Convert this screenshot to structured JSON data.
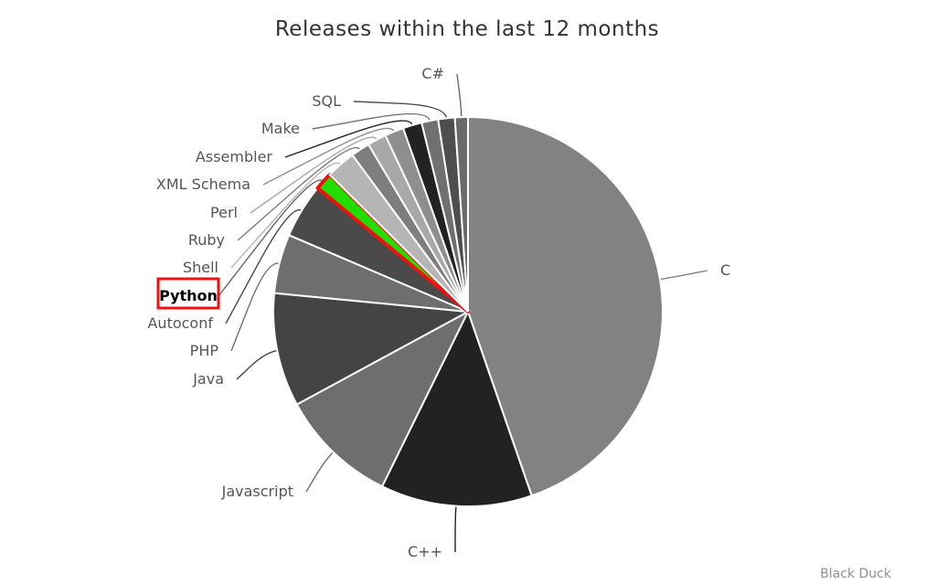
{
  "chart_data": {
    "type": "pie",
    "title": "Releases within the last 12 months",
    "credit": "Black Duck",
    "highlighted": "Python",
    "categories": [
      "C",
      "C++",
      "Javascript",
      "Java",
      "PHP",
      "Autoconf",
      "Python",
      "Shell",
      "Ruby",
      "Perl",
      "XML Schema",
      "Assembler",
      "Make",
      "SQL",
      "C#"
    ],
    "values": [
      45.5,
      12.8,
      10.0,
      9.6,
      5.0,
      4.6,
      1.5,
      2.5,
      1.6,
      1.6,
      1.6,
      1.6,
      1.4,
      1.4,
      1.1
    ],
    "colors": [
      "#828282",
      "#222222",
      "#6e6e6e",
      "#444444",
      "#6e6e6e",
      "#4a4a4a",
      "#22dd00",
      "#b5b5b5",
      "#7e7e7e",
      "#a8a8a8",
      "#8e8e8e",
      "#222222",
      "#707070",
      "#4e4e4e",
      "#6a6a6a"
    ],
    "highlight_stroke": "#ee1111"
  }
}
